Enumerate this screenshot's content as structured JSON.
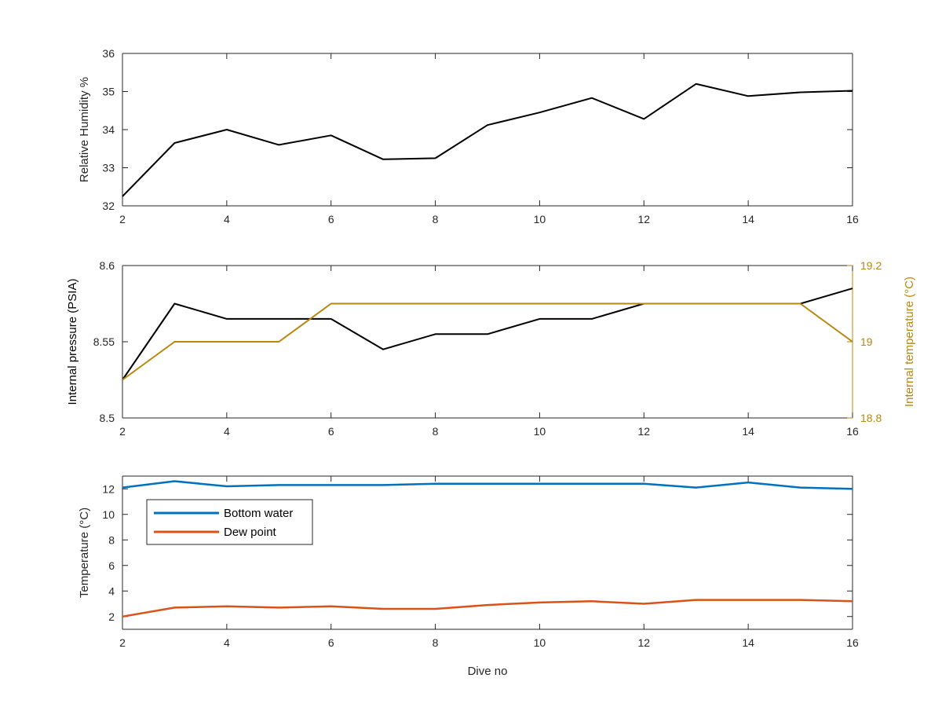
{
  "colors": {
    "axis": "#262626",
    "humidity": "#000000",
    "pressure": "#000000",
    "internal_temp": "#B8860B",
    "bottom_water": "#0072BD",
    "dew_point": "#D95319"
  },
  "chart_data": [
    {
      "type": "line",
      "id": "humidity",
      "xlabel": "",
      "ylabel": "Relative Humidity %",
      "xlim": [
        2,
        16
      ],
      "ylim": [
        32,
        36
      ],
      "xticks": [
        2,
        4,
        6,
        8,
        10,
        12,
        14,
        16
      ],
      "xtick_labels": [
        "2",
        "4",
        "6",
        "8",
        "10",
        "12",
        "14",
        "16"
      ],
      "yticks": [
        32,
        33,
        34,
        35,
        36
      ],
      "ytick_labels": [
        "32",
        "33",
        "34",
        "35",
        "36"
      ],
      "x": [
        2,
        3,
        4,
        5,
        6,
        7,
        8,
        9,
        10,
        11,
        12,
        13,
        14,
        15,
        16
      ],
      "series": [
        {
          "values": [
            32.25,
            33.65,
            34.0,
            33.6,
            33.85,
            33.22,
            33.25,
            34.12,
            34.45,
            34.83,
            34.28,
            35.2,
            34.88,
            34.98,
            35.02
          ]
        }
      ]
    },
    {
      "type": "line",
      "id": "pressure",
      "xlabel": "",
      "ylabel": "Internal pressure (PSIA)",
      "ylabel_right": "Internal temperature (°C)",
      "xlim": [
        2,
        16
      ],
      "ylim": [
        8.5,
        8.6
      ],
      "ylim_right": [
        18.8,
        19.2
      ],
      "xticks": [
        2,
        4,
        6,
        8,
        10,
        12,
        14,
        16
      ],
      "xtick_labels": [
        "2",
        "4",
        "6",
        "8",
        "10",
        "12",
        "14",
        "16"
      ],
      "yticks": [
        8.5,
        8.55,
        8.6
      ],
      "ytick_labels": [
        "8.5",
        "8.55",
        "8.6"
      ],
      "yticks_right": [
        18.8,
        19,
        19.2
      ],
      "ytick_labels_right": [
        "18.8",
        "19",
        "19.2"
      ],
      "x": [
        2,
        3,
        4,
        5,
        6,
        7,
        8,
        9,
        10,
        11,
        12,
        13,
        14,
        15,
        16
      ],
      "series": [
        {
          "axis": "left",
          "values": [
            8.525,
            8.575,
            8.565,
            8.565,
            8.565,
            8.545,
            8.555,
            8.555,
            8.565,
            8.565,
            8.575,
            8.575,
            8.575,
            8.575,
            8.585
          ]
        },
        {
          "axis": "right",
          "values": [
            18.9,
            19.0,
            19.0,
            19.0,
            19.1,
            19.1,
            19.1,
            19.1,
            19.1,
            19.1,
            19.1,
            19.1,
            19.1,
            19.1,
            19.0
          ]
        }
      ]
    },
    {
      "type": "line",
      "id": "temperature",
      "xlabel": "Dive no",
      "ylabel": "Temperature (°C)",
      "xlim": [
        2,
        16
      ],
      "ylim": [
        1,
        13
      ],
      "xticks": [
        2,
        4,
        6,
        8,
        10,
        12,
        14,
        16
      ],
      "xtick_labels": [
        "2",
        "4",
        "6",
        "8",
        "10",
        "12",
        "14",
        "16"
      ],
      "yticks": [
        2,
        4,
        6,
        8,
        10,
        12
      ],
      "ytick_labels": [
        "2",
        "4",
        "6",
        "8",
        "10",
        "12"
      ],
      "legend_position": "top-left",
      "x": [
        2,
        3,
        4,
        5,
        6,
        7,
        8,
        9,
        10,
        11,
        12,
        13,
        14,
        15,
        16
      ],
      "series": [
        {
          "name": "Bottom water",
          "values": [
            12.1,
            12.6,
            12.2,
            12.3,
            12.3,
            12.3,
            12.4,
            12.4,
            12.4,
            12.4,
            12.4,
            12.1,
            12.5,
            12.1,
            12.0
          ]
        },
        {
          "name": "Dew point",
          "values": [
            2.0,
            2.7,
            2.8,
            2.7,
            2.8,
            2.6,
            2.6,
            2.9,
            3.1,
            3.2,
            3.0,
            3.3,
            3.3,
            3.3,
            3.2
          ]
        }
      ]
    }
  ]
}
